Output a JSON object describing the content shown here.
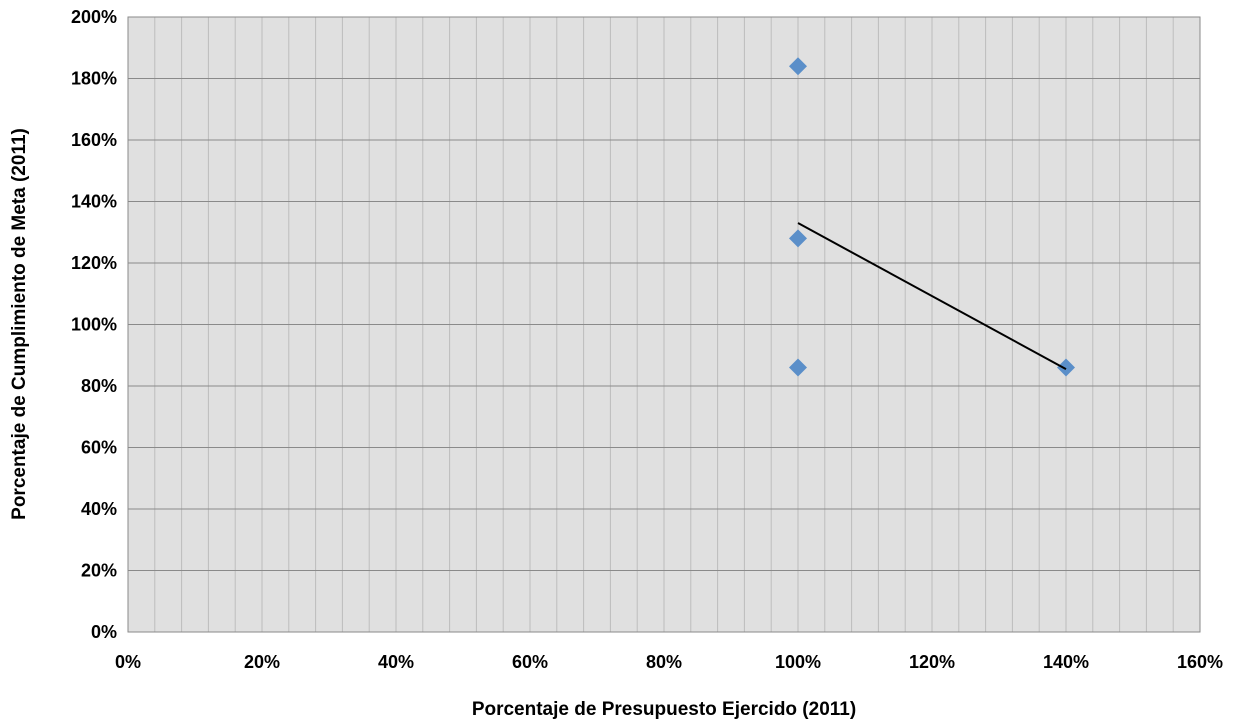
{
  "chart_data": {
    "type": "scatter",
    "title": "",
    "xlabel": "Porcentaje de Presupuesto Ejercido (2011)",
    "ylabel": "Porcentaje de Cumplimiento de Meta (2011)",
    "xlim": [
      0,
      1.6
    ],
    "ylim": [
      0,
      2.0
    ],
    "x_ticks": [
      0,
      0.2,
      0.4,
      0.6,
      0.8,
      1.0,
      1.2,
      1.4,
      1.6
    ],
    "x_tick_labels": [
      "0%",
      "20%",
      "40%",
      "60%",
      "80%",
      "100%",
      "120%",
      "140%",
      "160%"
    ],
    "y_ticks": [
      0,
      0.2,
      0.4,
      0.6,
      0.8,
      1.0,
      1.2,
      1.4,
      1.6,
      1.8,
      2.0
    ],
    "y_tick_labels": [
      "0%",
      "20%",
      "40%",
      "60%",
      "80%",
      "100%",
      "120%",
      "140%",
      "160%",
      "180%",
      "200%"
    ],
    "x_minor_step": 0.04,
    "grid": true,
    "legend": "none",
    "colors": {
      "marker": "#5b8fc9",
      "trendline": "#000000",
      "plot_background": "#e0e0e0",
      "major_grid": "#8a8a8a",
      "minor_grid": "#bdbdbd"
    },
    "series": [
      {
        "marker": "diamond",
        "points": [
          {
            "x": 1.0,
            "y": 1.84
          },
          {
            "x": 1.0,
            "y": 1.28
          },
          {
            "x": 1.0,
            "y": 0.86
          },
          {
            "x": 1.4,
            "y": 0.86
          }
        ]
      }
    ],
    "trendline": {
      "type": "linear",
      "points": [
        {
          "x": 1.0,
          "y": 1.33
        },
        {
          "x": 1.4,
          "y": 0.855
        }
      ]
    }
  }
}
